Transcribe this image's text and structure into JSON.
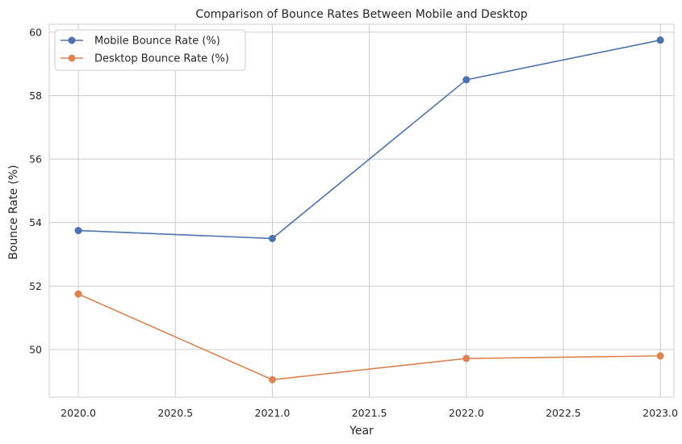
{
  "chart_data": {
    "type": "line",
    "title": "Comparison of Bounce Rates Between Mobile and Desktop",
    "xlabel": "Year",
    "ylabel": "Bounce Rate (%)",
    "xlim": [
      2019.85,
      2023.07
    ],
    "ylim": [
      48.5,
      60.25
    ],
    "xticks": [
      "2020.0",
      "2020.5",
      "2021.0",
      "2021.5",
      "2022.0",
      "2022.5",
      "2023.0"
    ],
    "yticks": [
      "50",
      "52",
      "54",
      "56",
      "58",
      "60"
    ],
    "grid": true,
    "legend_position": "top-left",
    "x": [
      2020,
      2021,
      2022,
      2023
    ],
    "series": [
      {
        "name": "Mobile Bounce Rate (%)",
        "color": "#4c72b0",
        "values": [
          53.75,
          53.5,
          58.5,
          59.75
        ]
      },
      {
        "name": "Desktop Bounce Rate (%)",
        "color": "#dd8452",
        "values": [
          51.75,
          49.05,
          49.72,
          49.8
        ]
      }
    ]
  }
}
